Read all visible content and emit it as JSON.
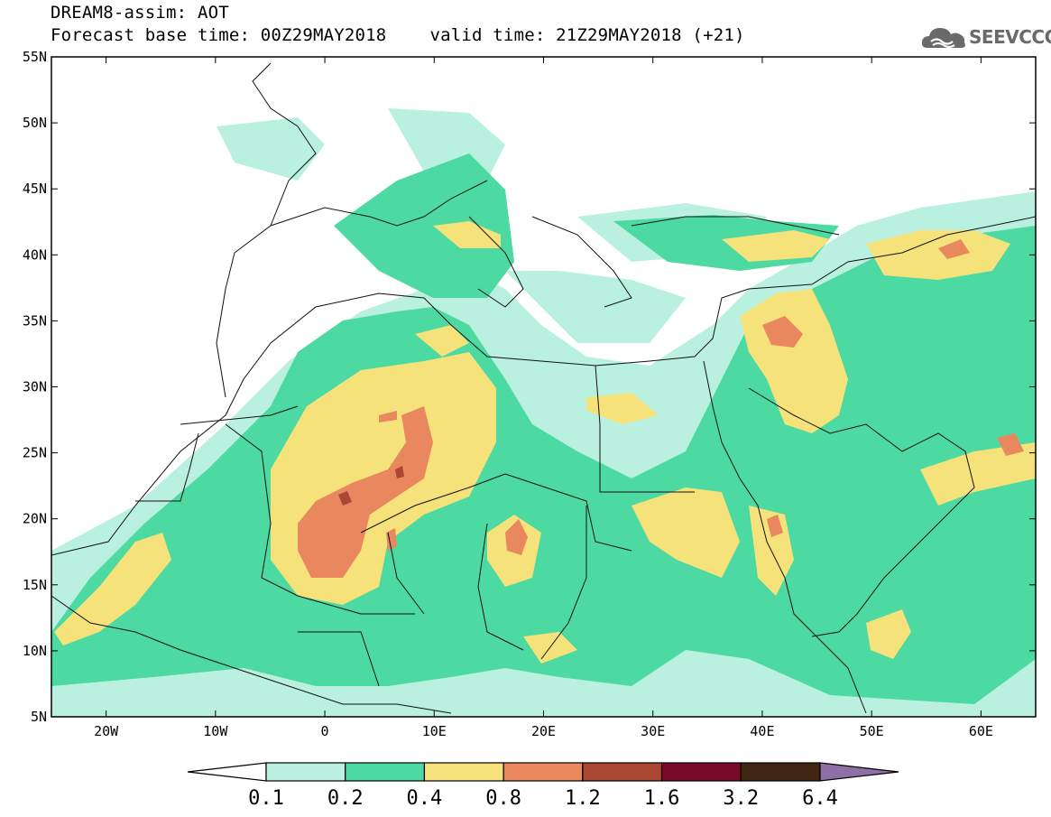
{
  "title": {
    "line1": "DREAM8-assim: AOT",
    "base_time": "Forecast base time: 00Z29MAY2018",
    "valid_time": "valid time: 21Z29MAY2018 (+21)"
  },
  "logo": {
    "text": "SEEVCCC",
    "icon": "cloud-logo-icon"
  },
  "map": {
    "lon_range": [
      -25,
      65
    ],
    "lat_range": [
      5,
      55
    ],
    "lon_ticks": [
      {
        "value": -20,
        "label": "20W"
      },
      {
        "value": -10,
        "label": "10W"
      },
      {
        "value": 0,
        "label": "0"
      },
      {
        "value": 10,
        "label": "10E"
      },
      {
        "value": 20,
        "label": "20E"
      },
      {
        "value": 30,
        "label": "30E"
      },
      {
        "value": 40,
        "label": "40E"
      },
      {
        "value": 50,
        "label": "50E"
      },
      {
        "value": 60,
        "label": "60E"
      }
    ],
    "lat_ticks": [
      {
        "value": 55,
        "label": "55N"
      },
      {
        "value": 50,
        "label": "50N"
      },
      {
        "value": 45,
        "label": "45N"
      },
      {
        "value": 40,
        "label": "40N"
      },
      {
        "value": 35,
        "label": "35N"
      },
      {
        "value": 30,
        "label": "30N"
      },
      {
        "value": 25,
        "label": "25N"
      },
      {
        "value": 20,
        "label": "20N"
      },
      {
        "value": 15,
        "label": "15N"
      },
      {
        "value": 10,
        "label": "10N"
      },
      {
        "value": 5,
        "label": "5N"
      }
    ]
  },
  "colorbar": {
    "colors": [
      "#ffffff",
      "#b9f0e0",
      "#4cd9a2",
      "#f5e27a",
      "#e9875f",
      "#a94733",
      "#7a0a2a",
      "#412513",
      "#8e6fa6"
    ],
    "labels": [
      "0.1",
      "0.2",
      "0.4",
      "0.8",
      "1.2",
      "1.6",
      "3.2",
      "6.4"
    ]
  }
}
